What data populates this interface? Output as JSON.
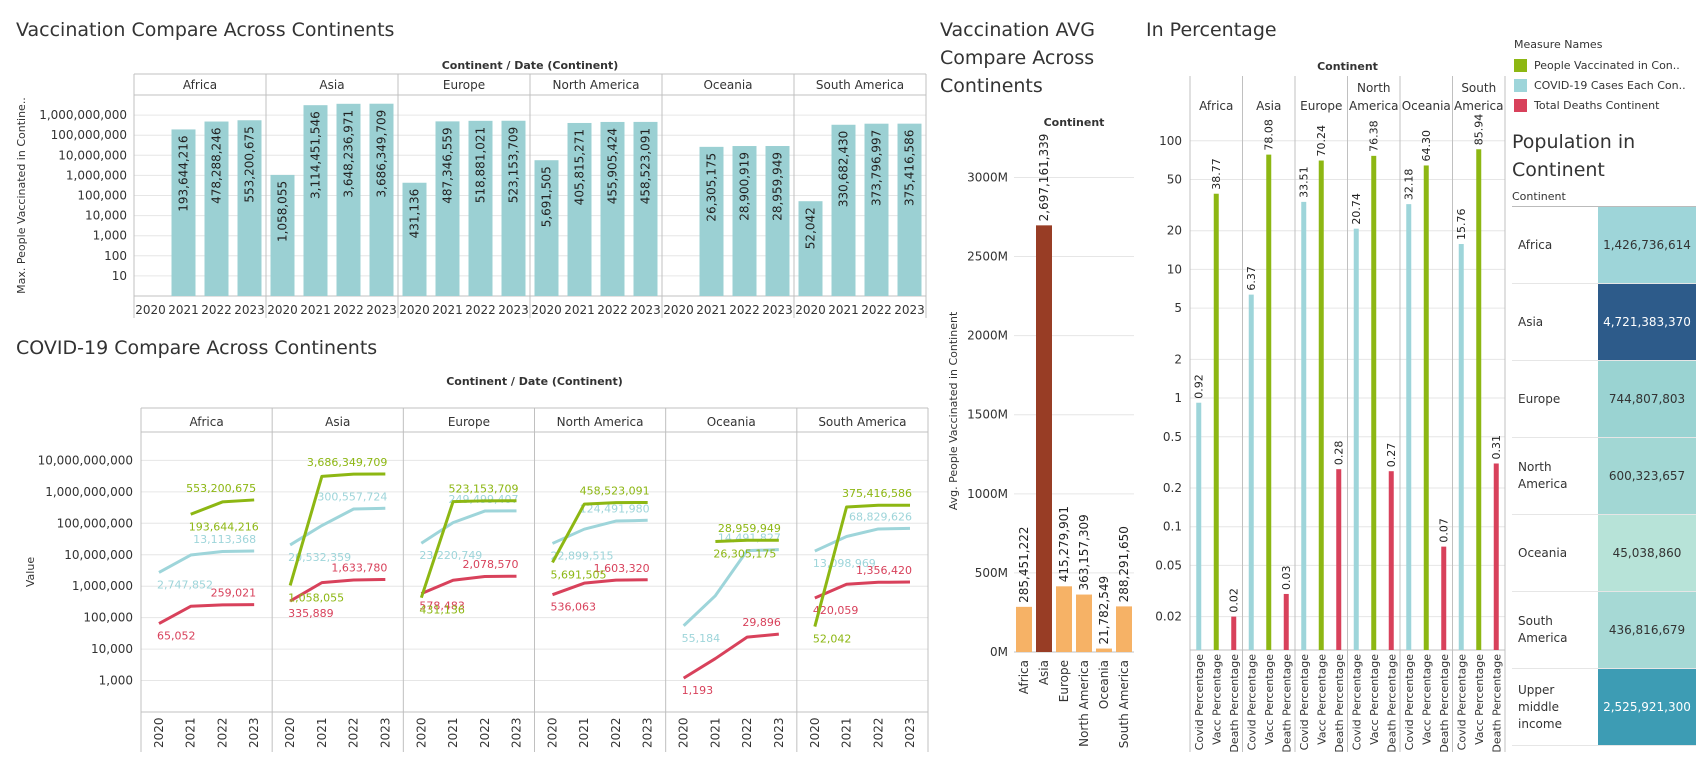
{
  "titles": {
    "vacc": "Vaccination Compare Across Continents",
    "covid": "COVID-19 Compare Across Continents",
    "avg": "Vaccination AVG Compare Across Continents",
    "avg_lines": [
      "Vaccination AVG",
      "Compare Across",
      "Continents"
    ],
    "pct": "In Percentage",
    "pop": "Population in Continent",
    "pop_lines": [
      "Population in",
      "Continent"
    ]
  },
  "colors": {
    "teal_bar": "#9bd0d3",
    "green": "#8db713",
    "light_blue": "#9ed5da",
    "red": "#d8415b",
    "avg_orange": "#f6b266",
    "avg_asia": "#983d25",
    "grid": "#e6e6e6",
    "axis": "#c0c0c0"
  },
  "legend": {
    "title": "Measure Names",
    "items": [
      {
        "label": "People Vaccinated in Con..",
        "color": "#8db713"
      },
      {
        "label": "COVID-19 Cases Each Con..",
        "color": "#9ed5da"
      },
      {
        "label": "Total Deaths Continent",
        "color": "#d8415b"
      }
    ]
  },
  "chart_data": [
    {
      "id": "vacc",
      "type": "bar",
      "header": "Continent / Date (Continent)",
      "ylabel": "Max. People Vaccinated in Contine..",
      "scale": "log",
      "ylim": [
        1,
        10000000000
      ],
      "yticks": [
        "10",
        "100",
        "1,000",
        "10,000",
        "100,000",
        "1,000,000",
        "10,000,000",
        "100,000,000",
        "1,000,000,000"
      ],
      "ytick_values": [
        10,
        100,
        1000,
        10000,
        100000,
        1000000,
        10000000,
        100000000,
        1000000000
      ],
      "years": [
        "2020",
        "2021",
        "2022",
        "2023"
      ],
      "panels": [
        {
          "name": "Africa",
          "values": [
            null,
            193644216,
            478288246,
            553200675
          ],
          "labels": [
            null,
            "193,644,216",
            "478,288,246",
            "553,200,675"
          ]
        },
        {
          "name": "Asia",
          "values": [
            1058055,
            3114451546,
            3648236971,
            3686349709
          ],
          "labels": [
            "1,058,055",
            "3,114,451,546",
            "3,648,236,971",
            "3,686,349,709"
          ]
        },
        {
          "name": "Europe",
          "values": [
            431136,
            487346559,
            518881021,
            523153709
          ],
          "labels": [
            "431,136",
            "487,346,559",
            "518,881,021",
            "523,153,709"
          ]
        },
        {
          "name": "North America",
          "values": [
            5691505,
            405815271,
            455905424,
            458523091
          ],
          "labels": [
            "5,691,505",
            "405,815,271",
            "455,905,424",
            "458,523,091"
          ]
        },
        {
          "name": "Oceania",
          "values": [
            null,
            26305175,
            28900919,
            28959949
          ],
          "labels": [
            null,
            "26,305,175",
            "28,900,919",
            "28,959,949"
          ]
        },
        {
          "name": "South America",
          "values": [
            52042,
            330682430,
            373796997,
            375416586
          ],
          "labels": [
            "52,042",
            "330,682,430",
            "373,796,997",
            "375,416,586"
          ]
        }
      ]
    },
    {
      "id": "covid",
      "type": "line",
      "header": "Continent / Date (Continent)",
      "ylabel": "Value",
      "scale": "log",
      "ylim": [
        100,
        80000000000
      ],
      "yticks": [
        "1,000",
        "10,000",
        "100,000",
        "1,000,000",
        "10,000,000",
        "100,000,000",
        "1,000,000,000",
        "10,000,000,000"
      ],
      "ytick_values": [
        1000,
        10000,
        100000,
        1000000,
        10000000,
        100000000,
        1000000000,
        10000000000
      ],
      "years": [
        "2020",
        "2021",
        "2022",
        "2023"
      ],
      "panels": [
        {
          "name": "Africa",
          "series": {
            "vacc": {
              "values": [
                null,
                193644216,
                478288246,
                553200675
              ],
              "start_label": "193,644,216",
              "end_label": "553,200,675"
            },
            "cases": {
              "values": [
                2747852,
                9800000,
                12700000,
                13113368
              ],
              "start_label": "2,747,852",
              "end_label": "13,113,368"
            },
            "deaths": {
              "values": [
                65052,
                230000,
                255000,
                259021
              ],
              "start_label": "65,052",
              "end_label": "259,021"
            }
          }
        },
        {
          "name": "Asia",
          "series": {
            "vacc": {
              "values": [
                1058055,
                3114451546,
                3648236971,
                3686349709
              ],
              "start_label": "1,058,055",
              "end_label": "3,686,349,709"
            },
            "cases": {
              "values": [
                20532359,
                85000000,
                285000000,
                300557724
              ],
              "start_label": "20,532,359",
              "end_label": "300,557,724"
            },
            "deaths": {
              "values": [
                335889,
                1300000,
                1580000,
                1633780
              ],
              "start_label": "335,889",
              "end_label": "1,633,780"
            }
          }
        },
        {
          "name": "Europe",
          "series": {
            "vacc": {
              "values": [
                431136,
                487346559,
                518881021,
                523153709
              ],
              "start_label": "431,136",
              "end_label": "523,153,709"
            },
            "cases": {
              "values": [
                23220749,
                105000000,
                245000000,
                249499407
              ],
              "start_label": "23,220,749",
              "end_label": "249,499,407"
            },
            "deaths": {
              "values": [
                578483,
                1550000,
                2030000,
                2078570
              ],
              "start_label": "578,483",
              "end_label": "2,078,570"
            }
          }
        },
        {
          "name": "North America",
          "series": {
            "vacc": {
              "values": [
                5691505,
                405815271,
                455905424,
                458523091
              ],
              "start_label": "5,691,505",
              "end_label": "458,523,091"
            },
            "cases": {
              "values": [
                22899515,
                65000000,
                118000000,
                124491980
              ],
              "start_label": "22,899,515",
              "end_label": "124,491,980"
            },
            "deaths": {
              "values": [
                536063,
                1250000,
                1560000,
                1603320
              ],
              "start_label": "536,063",
              "end_label": "1,603,320"
            }
          }
        },
        {
          "name": "Oceania",
          "series": {
            "vacc": {
              "values": [
                null,
                26305175,
                28900919,
                28959949
              ],
              "start_label": "26,305,175",
              "end_label": "28,959,949"
            },
            "cases": {
              "values": [
                55184,
                500000,
                13500000,
                14491827
              ],
              "start_label": "55,184",
              "end_label": "14,491,827"
            },
            "deaths": {
              "values": [
                1193,
                5000,
                24000,
                29896
              ],
              "start_label": "1,193",
              "end_label": "29,896"
            }
          }
        },
        {
          "name": "South America",
          "series": {
            "vacc": {
              "values": [
                52042,
                330682430,
                373796997,
                375416586
              ],
              "start_label": "52,042",
              "end_label": "375,416,586"
            },
            "cases": {
              "values": [
                13098969,
                38000000,
                66000000,
                68829626
              ],
              "start_label": "13,098,969",
              "end_label": "68,829,626"
            },
            "deaths": {
              "values": [
                420059,
                1150000,
                1330000,
                1356420
              ],
              "start_label": "420,059",
              "end_label": "1,356,420"
            }
          }
        }
      ]
    },
    {
      "id": "avg",
      "type": "bar",
      "header": "Continent",
      "ylabel": "Avg. People Vaccinated in Continent",
      "ylim": [
        0,
        3300000000
      ],
      "yticks": [
        "0M",
        "500M",
        "1000M",
        "1500M",
        "2000M",
        "2500M",
        "3000M"
      ],
      "ytick_values": [
        0,
        500000000,
        1000000000,
        1500000000,
        2000000000,
        2500000000,
        3000000000
      ],
      "categories": [
        "Africa",
        "Asia",
        "Europe",
        "North America",
        "Oceania",
        "South America"
      ],
      "values": [
        285451222,
        2697161339,
        415279901,
        363157309,
        21782549,
        288291650
      ],
      "labels": [
        "285,451,222",
        "2,697,161,339",
        "415,279,901",
        "363,157,309",
        "21,782,549",
        "288,291,650"
      ]
    },
    {
      "id": "pct",
      "type": "bar",
      "header": "Continent",
      "scale": "log",
      "ylim": [
        0.011,
        140
      ],
      "yticks": [
        "0.02",
        "0.05",
        "0.1",
        "0.2",
        "0.5",
        "1",
        "2",
        "5",
        "10",
        "20",
        "50",
        "100"
      ],
      "ytick_values": [
        0.02,
        0.05,
        0.1,
        0.2,
        0.5,
        1,
        2,
        5,
        10,
        20,
        50,
        100
      ],
      "measures": [
        "Covid Percentage",
        "Vacc Percentage",
        "Death Percentage"
      ],
      "panels": [
        {
          "name": "Africa",
          "header_lines": [
            "Africa"
          ],
          "values": [
            0.92,
            38.77,
            0.02
          ],
          "labels": [
            "0.92",
            "38.77",
            "0.02"
          ]
        },
        {
          "name": "Asia",
          "header_lines": [
            "Asia"
          ],
          "values": [
            6.37,
            78.08,
            0.03
          ],
          "labels": [
            "6.37",
            "78.08",
            "0.03"
          ]
        },
        {
          "name": "Europe",
          "header_lines": [
            "Europe"
          ],
          "values": [
            33.51,
            70.24,
            0.28
          ],
          "labels": [
            "33.51",
            "70.24",
            "0.28"
          ]
        },
        {
          "name": "North America",
          "header_lines": [
            "North",
            "America"
          ],
          "values": [
            20.74,
            76.38,
            0.27
          ],
          "labels": [
            "20.74",
            "76.38",
            "0.27"
          ]
        },
        {
          "name": "Oceania",
          "header_lines": [
            "Oceania"
          ],
          "values": [
            32.18,
            64.3,
            0.07
          ],
          "labels": [
            "32.18",
            "64.30",
            "0.07"
          ]
        },
        {
          "name": "South America",
          "header_lines": [
            "South",
            "America"
          ],
          "values": [
            15.76,
            85.94,
            0.31
          ],
          "labels": [
            "15.76",
            "85.94",
            "0.31"
          ]
        }
      ]
    },
    {
      "id": "pop",
      "type": "table",
      "header": "Continent",
      "rows": [
        {
          "name": "Africa",
          "value": "1,426,736,614",
          "color": "#9ed5d9",
          "text_color": "#333333"
        },
        {
          "name": "Asia",
          "value": "4,721,383,370",
          "color": "#2d5b8a",
          "text_color": "#ffffff"
        },
        {
          "name": "Europe",
          "value": "744,807,803",
          "color": "#9ad3d2",
          "text_color": "#333333"
        },
        {
          "name": "North America",
          "value": "600,323,657",
          "color": "#a2d7d4",
          "text_color": "#333333"
        },
        {
          "name": "Oceania",
          "value": "45,038,860",
          "color": "#b7e3d8",
          "text_color": "#333333"
        },
        {
          "name": "South America",
          "value": "436,816,679",
          "color": "#a6d9d5",
          "text_color": "#333333"
        },
        {
          "name": "Upper middle income",
          "value": "2,525,921,300",
          "color": "#3d9cb4",
          "text_color": "#ffffff"
        }
      ]
    }
  ]
}
